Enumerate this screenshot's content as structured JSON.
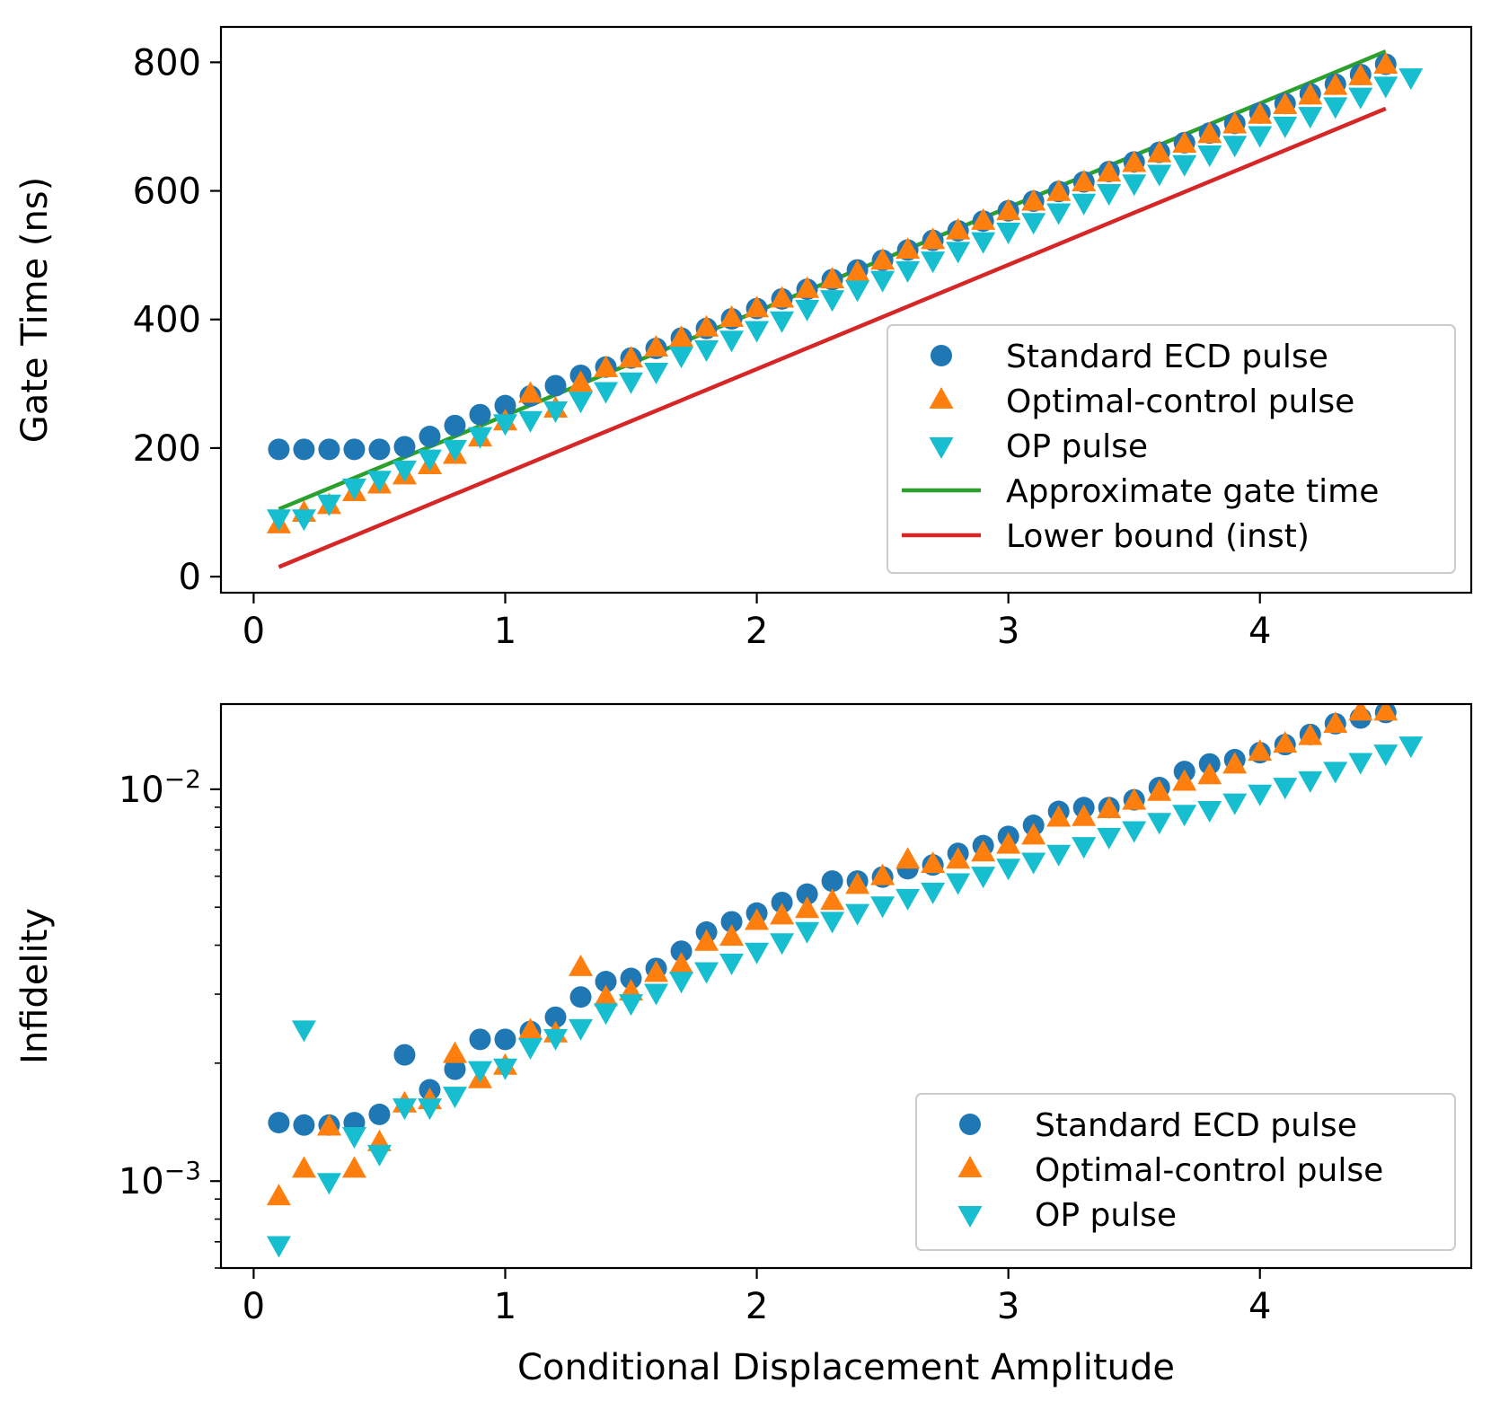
{
  "chart_data": [
    {
      "type": "scatter",
      "panel": "top",
      "ylabel": "Gate Time (ns)",
      "xlabel": "",
      "xlim": [
        -0.13,
        4.84
      ],
      "ylim": [
        -25,
        855
      ],
      "yscale": "linear",
      "xticks": [
        0,
        1,
        2,
        3,
        4
      ],
      "xtick_labels": [
        "0",
        "1",
        "2",
        "3",
        "4"
      ],
      "yticks": [
        0,
        200,
        400,
        600,
        800
      ],
      "ytick_labels": [
        "0",
        "200",
        "400",
        "600",
        "800"
      ],
      "legend_position": "lower right",
      "series": [
        {
          "name": "Standard ECD pulse",
          "marker": "circle",
          "color": "#1f77b4",
          "x": [
            0.1,
            0.2,
            0.3,
            0.4,
            0.5,
            0.6,
            0.7,
            0.8,
            0.9,
            1.0,
            1.1,
            1.2,
            1.3,
            1.4,
            1.5,
            1.6,
            1.7,
            1.8,
            1.9,
            2.0,
            2.1,
            2.2,
            2.3,
            2.4,
            2.5,
            2.6,
            2.7,
            2.8,
            2.9,
            3.0,
            3.1,
            3.2,
            3.3,
            3.4,
            3.5,
            3.6,
            3.7,
            3.8,
            3.9,
            4.0,
            4.1,
            4.2,
            4.3,
            4.4,
            4.5
          ],
          "y": [
            198,
            198,
            198,
            198,
            198,
            202,
            218,
            235,
            252,
            266,
            281,
            297,
            313,
            326,
            340,
            355,
            371,
            386,
            401,
            417,
            432,
            447,
            462,
            477,
            492,
            508,
            523,
            538,
            553,
            569,
            584,
            599,
            614,
            630,
            645,
            660,
            675,
            690,
            705,
            721,
            736,
            751,
            766,
            781,
            797
          ]
        },
        {
          "name": "Optimal-control pulse",
          "marker": "triangle-up",
          "color": "#ff7f0e",
          "x": [
            0.1,
            0.2,
            0.3,
            0.4,
            0.5,
            0.6,
            0.7,
            0.8,
            0.9,
            1.0,
            1.1,
            1.2,
            1.3,
            1.4,
            1.5,
            1.6,
            1.7,
            1.8,
            1.9,
            2.0,
            2.1,
            2.2,
            2.3,
            2.4,
            2.5,
            2.6,
            2.7,
            2.8,
            2.9,
            3.0,
            3.1,
            3.2,
            3.3,
            3.4,
            3.5,
            3.6,
            3.7,
            3.8,
            3.9,
            4.0,
            4.1,
            4.2,
            4.3,
            4.4,
            4.5
          ],
          "y": [
            80,
            98,
            110,
            130,
            142,
            156,
            172,
            188,
            215,
            240,
            283,
            260,
            300,
            323,
            338,
            355,
            370,
            386,
            401,
            416,
            431,
            446,
            461,
            472,
            490,
            507,
            522,
            537,
            552,
            567,
            582,
            597,
            612,
            627,
            642,
            657,
            672,
            687,
            702,
            717,
            732,
            747,
            762,
            777,
            795
          ]
        },
        {
          "name": "OP pulse",
          "marker": "triangle-down",
          "color": "#17becf",
          "x": [
            0.1,
            0.2,
            0.3,
            0.4,
            0.5,
            0.6,
            0.7,
            0.8,
            0.9,
            1.0,
            1.1,
            1.2,
            1.3,
            1.4,
            1.5,
            1.6,
            1.7,
            1.8,
            1.9,
            2.0,
            2.1,
            2.2,
            2.3,
            2.4,
            2.5,
            2.6,
            2.7,
            2.8,
            2.9,
            3.0,
            3.1,
            3.2,
            3.3,
            3.4,
            3.5,
            3.6,
            3.7,
            3.8,
            3.9,
            4.0,
            4.1,
            4.2,
            4.3,
            4.4,
            4.5,
            4.6
          ],
          "y": [
            92,
            92,
            115,
            140,
            152,
            168,
            185,
            200,
            220,
            240,
            245,
            260,
            275,
            290,
            305,
            320,
            345,
            355,
            370,
            385,
            400,
            418,
            433,
            448,
            463,
            478,
            493,
            508,
            523,
            538,
            553,
            568,
            583,
            598,
            613,
            628,
            643,
            658,
            673,
            688,
            703,
            718,
            733,
            748,
            765,
            778
          ]
        },
        {
          "name": "Approximate gate time",
          "type": "line",
          "color": "#2ca02c",
          "x": [
            0.1,
            4.5
          ],
          "y": [
            105,
            817
          ]
        },
        {
          "name": "Lower bound (inst)",
          "type": "line",
          "color": "#d62728",
          "x": [
            0.1,
            4.5
          ],
          "y": [
            15,
            728
          ]
        }
      ]
    },
    {
      "type": "scatter",
      "panel": "bottom",
      "ylabel": "Infidelity",
      "xlabel": "Conditional Displacement Amplitude",
      "xlim": [
        -0.13,
        4.84
      ],
      "ylim": [
        0.0006,
        0.0165
      ],
      "yscale": "log",
      "xticks": [
        0,
        1,
        2,
        3,
        4
      ],
      "xtick_labels": [
        "0",
        "1",
        "2",
        "3",
        "4"
      ],
      "yticks": [
        0.001,
        0.01
      ],
      "ytick_labels": [
        {
          "base": "10",
          "exp": "−3"
        },
        {
          "base": "10",
          "exp": "−2"
        }
      ],
      "legend_position": "lower right",
      "series": [
        {
          "name": "Standard ECD pulse",
          "marker": "circle",
          "color": "#1f77b4",
          "x": [
            0.1,
            0.2,
            0.3,
            0.4,
            0.5,
            0.6,
            0.7,
            0.8,
            0.9,
            1.0,
            1.1,
            1.2,
            1.3,
            1.4,
            1.5,
            1.6,
            1.7,
            1.8,
            1.9,
            2.0,
            2.1,
            2.2,
            2.3,
            2.4,
            2.5,
            2.6,
            2.7,
            2.8,
            2.9,
            3.0,
            3.1,
            3.2,
            3.3,
            3.4,
            3.5,
            3.6,
            3.7,
            3.8,
            3.9,
            4.0,
            4.1,
            4.2,
            4.3,
            4.4,
            4.5
          ],
          "y": [
            0.00141,
            0.00139,
            0.00139,
            0.00141,
            0.00148,
            0.0021,
            0.00171,
            0.00193,
            0.0023,
            0.0023,
            0.00241,
            0.00262,
            0.00295,
            0.00323,
            0.00329,
            0.00349,
            0.00386,
            0.00432,
            0.00459,
            0.00483,
            0.00514,
            0.0054,
            0.00583,
            0.00583,
            0.00597,
            0.00627,
            0.00641,
            0.00686,
            0.00718,
            0.00758,
            0.00809,
            0.00878,
            0.00898,
            0.00898,
            0.0094,
            0.0101,
            0.0111,
            0.0116,
            0.0119,
            0.0124,
            0.013,
            0.0138,
            0.0147,
            0.0152,
            0.0157
          ]
        },
        {
          "name": "Optimal-control pulse",
          "marker": "triangle-up",
          "color": "#ff7f0e",
          "x": [
            0.1,
            0.2,
            0.3,
            0.4,
            0.5,
            0.6,
            0.7,
            0.8,
            0.9,
            1.0,
            1.1,
            1.2,
            1.3,
            1.4,
            1.5,
            1.6,
            1.7,
            1.8,
            1.9,
            2.0,
            2.1,
            2.2,
            2.3,
            2.4,
            2.5,
            2.6,
            2.7,
            2.8,
            2.9,
            3.0,
            3.1,
            3.2,
            3.3,
            3.4,
            3.5,
            3.6,
            3.7,
            3.8,
            3.9,
            4.0,
            4.1,
            4.2,
            4.3,
            4.4,
            4.5
          ],
          "y": [
            0.00091,
            0.00107,
            0.00137,
            0.00107,
            0.00125,
            0.00157,
            0.0016,
            0.0021,
            0.00181,
            0.00196,
            0.00241,
            0.00237,
            0.0035,
            0.00293,
            0.00303,
            0.00338,
            0.00355,
            0.00406,
            0.00418,
            0.00459,
            0.00474,
            0.00492,
            0.00516,
            0.00567,
            0.00597,
            0.00658,
            0.00641,
            0.00658,
            0.00686,
            0.00718,
            0.00758,
            0.00842,
            0.00845,
            0.00885,
            0.0093,
            0.0098,
            0.0104,
            0.0108,
            0.0115,
            0.0124,
            0.013,
            0.0136,
            0.0146,
            0.0157,
            0.0157
          ]
        },
        {
          "name": "OP pulse",
          "marker": "triangle-down",
          "color": "#17becf",
          "x": [
            0.1,
            0.2,
            0.3,
            0.4,
            0.5,
            0.6,
            0.7,
            0.8,
            0.9,
            1.0,
            1.1,
            1.2,
            1.3,
            1.4,
            1.5,
            1.6,
            1.7,
            1.8,
            1.9,
            2.0,
            2.1,
            2.2,
            2.3,
            2.4,
            2.5,
            2.6,
            2.7,
            2.8,
            2.9,
            3.0,
            3.1,
            3.2,
            3.3,
            3.4,
            3.5,
            3.6,
            3.7,
            3.8,
            3.9,
            4.0,
            4.1,
            4.2,
            4.3,
            4.4,
            4.5,
            4.6
          ],
          "y": [
            0.00069,
            0.00245,
            0.001,
            0.00131,
            0.00118,
            0.00155,
            0.00155,
            0.00166,
            0.00193,
            0.00196,
            0.00221,
            0.00233,
            0.00247,
            0.00271,
            0.00286,
            0.00304,
            0.00326,
            0.00345,
            0.00363,
            0.00387,
            0.00409,
            0.00437,
            0.00464,
            0.00486,
            0.00508,
            0.00531,
            0.00551,
            0.00582,
            0.00605,
            0.00634,
            0.00657,
            0.00688,
            0.0072,
            0.0076,
            0.0079,
            0.0083,
            0.0087,
            0.0089,
            0.0093,
            0.0098,
            0.0102,
            0.0106,
            0.0112,
            0.0118,
            0.0124,
            0.013
          ]
        }
      ]
    }
  ]
}
